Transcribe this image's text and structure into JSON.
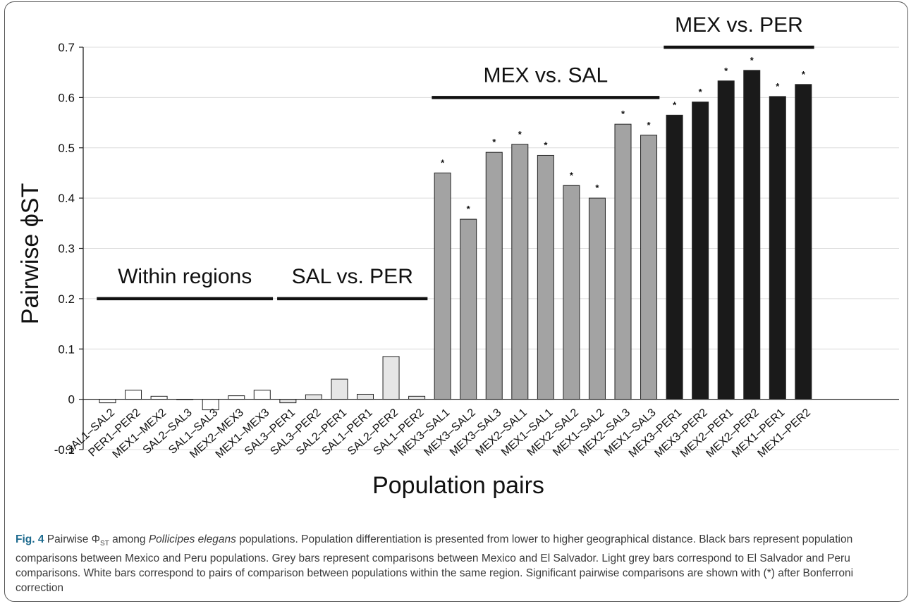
{
  "chart_data": {
    "type": "bar",
    "xlabel": "Population pairs",
    "ylabel": "Pairwise ϕST",
    "ylim": [
      -0.1,
      0.7
    ],
    "yticks": [
      "-0.1",
      "0",
      "0.1",
      "0.2",
      "0.3",
      "0.4",
      "0.5",
      "0.6",
      "0.7"
    ],
    "grid": true,
    "categories": [
      "SAL1–SAL2",
      "PER1–PER2",
      "MEX1–MEX2",
      "SAL2–SAL3",
      "SAL1–SAL3",
      "MEX2–MEX3",
      "MEX1–MEX3",
      "SAL3–PER1",
      "SAL3–PER2",
      "SAL2–PER1",
      "SAL1–PER1",
      "SAL2–PER2",
      "SAL1–PER2",
      "MEX3–SAL1",
      "MEX3–SAL2",
      "MEX3–SAL3",
      "MEX2–SAL1",
      "MEX1–SAL1",
      "MEX2–SAL2",
      "MEX1–SAL2",
      "MEX2–SAL3",
      "MEX1–SAL3",
      "MEX3–PER1",
      "MEX3–PER2",
      "MEX2–PER1",
      "MEX2–PER2",
      "MEX1–PER1",
      "MEX1–PER2"
    ],
    "values": [
      -0.007,
      0.018,
      0.006,
      0.0,
      -0.021,
      0.007,
      0.018,
      -0.007,
      0.009,
      0.04,
      0.01,
      0.085,
      0.006,
      0.45,
      0.358,
      0.491,
      0.507,
      0.485,
      0.425,
      0.4,
      0.547,
      0.525,
      0.565,
      0.591,
      0.633,
      0.654,
      0.602,
      0.626
    ],
    "significant": [
      false,
      false,
      false,
      false,
      false,
      false,
      false,
      false,
      false,
      false,
      false,
      false,
      false,
      true,
      true,
      true,
      true,
      true,
      true,
      true,
      true,
      true,
      true,
      true,
      true,
      true,
      true,
      true
    ],
    "bar_colors": [
      "#ffffff",
      "#ffffff",
      "#ffffff",
      "#ffffff",
      "#ffffff",
      "#ffffff",
      "#ffffff",
      "#e6e6e6",
      "#e6e6e6",
      "#e6e6e6",
      "#e6e6e6",
      "#e6e6e6",
      "#e6e6e6",
      "#a3a3a3",
      "#a3a3a3",
      "#a3a3a3",
      "#a3a3a3",
      "#a3a3a3",
      "#a3a3a3",
      "#a3a3a3",
      "#a3a3a3",
      "#a3a3a3",
      "#1a1a1a",
      "#1a1a1a",
      "#1a1a1a",
      "#1a1a1a",
      "#1a1a1a",
      "#1a1a1a"
    ],
    "significance_marker": "*",
    "groups": [
      {
        "label": "Within regions",
        "from": 0,
        "to": 6,
        "line_y": 0.2
      },
      {
        "label": "SAL vs. PER",
        "from": 7,
        "to": 12,
        "line_y": 0.2
      },
      {
        "label": "MEX vs. SAL",
        "from": 13,
        "to": 21,
        "line_y": 0.6
      },
      {
        "label": "MEX vs. PER",
        "from": 22,
        "to": 27,
        "line_y": 0.7
      }
    ]
  },
  "caption": {
    "fig_label": "Fig. 4",
    "part1": " Pairwise Φ",
    "sub": "ST",
    "part2": " among ",
    "species": "Pollicipes elegans",
    "part3": " populations. Population differentiation is presented from lower to higher geographical distance. Black bars represent population comparisons between Mexico and Peru populations. Grey bars represent comparisons between Mexico and El Salvador. Light grey bars correspond to El Salvador and Peru comparisons. White bars correspond to pairs of comparison between populations within the same region. Significant pairwise comparisons are shown with (*) after Bonferroni correction"
  }
}
